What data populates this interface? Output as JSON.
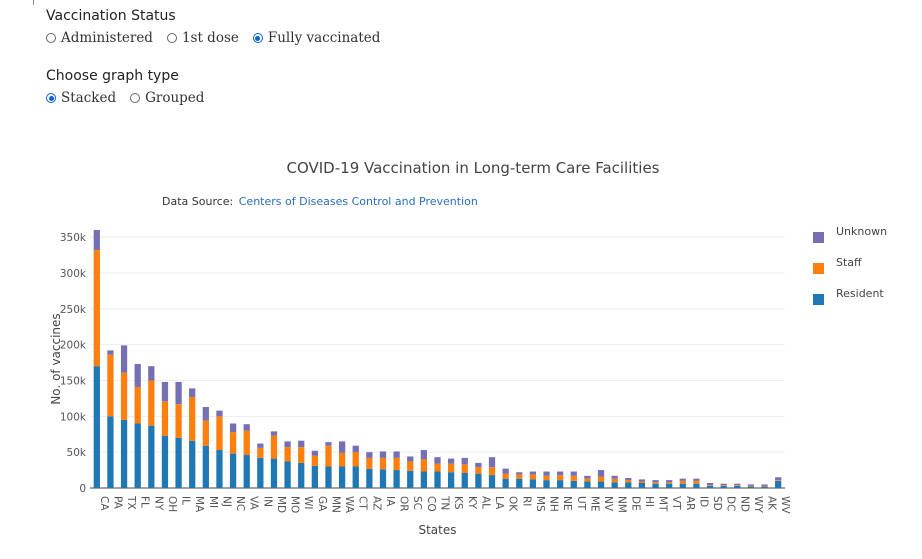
{
  "vaccination_status": {
    "label": "Vaccination Status",
    "options": [
      "Administered",
      "1st dose",
      "Fully vaccinated"
    ],
    "selected": "Fully vaccinated"
  },
  "graph_type": {
    "label": "Choose graph type",
    "options": [
      "Stacked",
      "Grouped"
    ],
    "selected": "Stacked"
  },
  "chart_data": {
    "type": "bar",
    "mode": "stacked",
    "title": "COVID-19 Vaccination in Long-term Care Facilities",
    "source_prefix": "Data Source: ",
    "source_link": "Centers of Diseases Control and Prevention",
    "xlabel": "States",
    "ylabel": "No. of vaccines",
    "ylim": [
      0,
      360000
    ],
    "yticks": [
      0,
      50000,
      100000,
      150000,
      200000,
      250000,
      300000,
      350000
    ],
    "ytick_labels": [
      "0",
      "50k",
      "100k",
      "150k",
      "200k",
      "250k",
      "300k",
      "350k"
    ],
    "legend": [
      "Unknown",
      "Staff",
      "Resident"
    ],
    "colors": {
      "Resident": "#1f77b4",
      "Staff": "#ff7f0e",
      "Unknown": "#7570b3"
    },
    "categories": [
      "CA",
      "PA",
      "TX",
      "FL",
      "NY",
      "OH",
      "IL",
      "MA",
      "MI",
      "NJ",
      "NC",
      "VA",
      "IN",
      "MD",
      "MO",
      "WI",
      "GA",
      "MN",
      "WA",
      "CT",
      "AZ",
      "IA",
      "OR",
      "SC",
      "CO",
      "TN",
      "KS",
      "KY",
      "AL",
      "LA",
      "OK",
      "RI",
      "MS",
      "NH",
      "NE",
      "UT",
      "ME",
      "NV",
      "NM",
      "DE",
      "HI",
      "MT",
      "VT",
      "AR",
      "ID",
      "SD",
      "DC",
      "ND",
      "WY",
      "AK",
      "WV"
    ],
    "series": [
      {
        "name": "Resident",
        "values": [
          170000,
          100000,
          95000,
          90000,
          87000,
          73000,
          70000,
          66000,
          59000,
          53000,
          48000,
          46000,
          42000,
          41000,
          37000,
          35000,
          31000,
          30000,
          30000,
          30000,
          27000,
          26000,
          25000,
          24000,
          23000,
          23000,
          22000,
          21000,
          20000,
          18000,
          13000,
          13000,
          12000,
          11000,
          11000,
          10000,
          9000,
          9000,
          8000,
          8000,
          7000,
          6000,
          6000,
          6000,
          6000,
          3000,
          3000,
          3000,
          2000,
          2000,
          10000
        ]
      },
      {
        "name": "Staff",
        "values": [
          162000,
          86000,
          66000,
          51000,
          63000,
          48000,
          47000,
          61000,
          35000,
          47000,
          30000,
          34000,
          14000,
          32000,
          20000,
          22000,
          14000,
          29000,
          19000,
          20000,
          15000,
          16000,
          17000,
          13000,
          17000,
          11000,
          12000,
          12000,
          9000,
          11000,
          7000,
          6000,
          7000,
          6000,
          7000,
          7000,
          4000,
          7000,
          5000,
          3000,
          2000,
          2000,
          2000,
          4000,
          4000,
          1000,
          1000,
          1000,
          1000,
          1000,
          1000
        ]
      },
      {
        "name": "Unknown",
        "values": [
          28000,
          6000,
          38000,
          32000,
          20000,
          27000,
          31000,
          12000,
          19000,
          8000,
          12000,
          9000,
          6000,
          6000,
          8000,
          9000,
          7000,
          5000,
          16000,
          9000,
          8000,
          9000,
          9000,
          7000,
          13000,
          9000,
          7000,
          9000,
          6000,
          14000,
          7000,
          3000,
          4000,
          6000,
          5000,
          6000,
          4000,
          9000,
          4000,
          3000,
          3000,
          3000,
          3000,
          3000,
          3000,
          3000,
          2000,
          2000,
          2000,
          2000,
          4000
        ]
      }
    ]
  }
}
